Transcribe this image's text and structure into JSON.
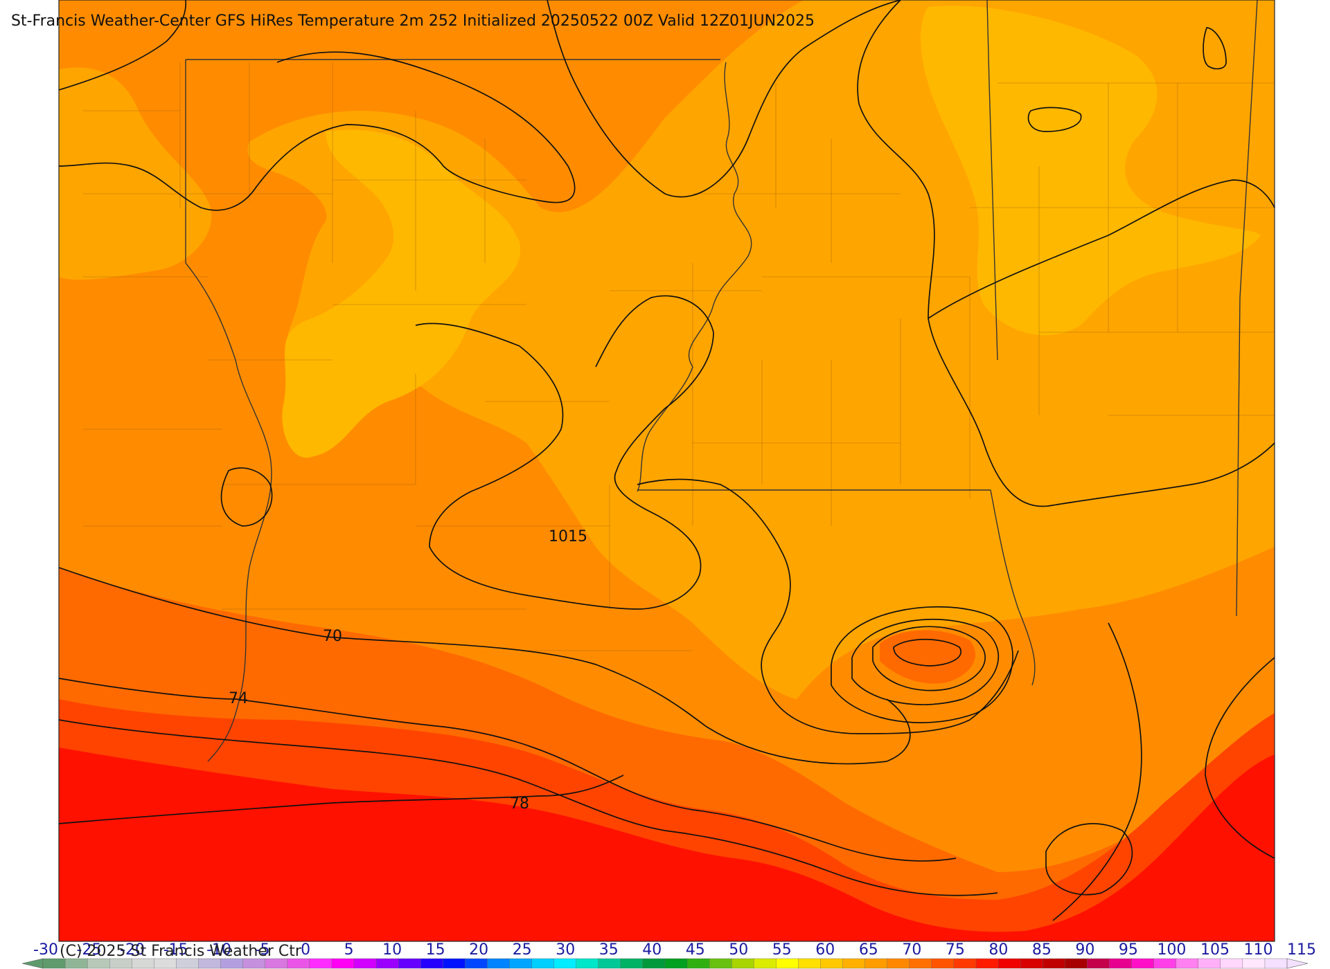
{
  "title": "St-Francis Weather-Center GFS HiRes Temperature 2m  252 Initialized 20250522 00Z Valid 12Z01JUN2025",
  "copyright": "(C) 2025 St Francis Weather Ctr",
  "contour_labels": {
    "pressure": "1015",
    "temp_70": "70",
    "temp_74": "74",
    "temp_78": "78"
  },
  "colorbar": {
    "ticks": [
      "-30",
      "-25",
      "-20",
      "-15",
      "-10",
      "-5",
      "0",
      "5",
      "10",
      "15",
      "20",
      "25",
      "30",
      "35",
      "40",
      "45",
      "50",
      "55",
      "60",
      "65",
      "70",
      "75",
      "80",
      "85",
      "90",
      "95",
      "100",
      "105",
      "110",
      "115"
    ],
    "colors": [
      "#5f9b6c",
      "#8fb596",
      "#b7c8b9",
      "#c8cfc9",
      "#d6d8d6",
      "#dcdcdc",
      "#cfcfdc",
      "#c2b7dc",
      "#b39fdf",
      "#c590dd",
      "#d878e0",
      "#ea55e8",
      "#ff2cff",
      "#ff00f5",
      "#d100ff",
      "#9b00ff",
      "#6500ff",
      "#2600ff",
      "#0013ff",
      "#0047ff",
      "#0083ff",
      "#00a5ff",
      "#00cfff",
      "#00ecff",
      "#00e6c8",
      "#00c896",
      "#00b264",
      "#009a3c",
      "#00a020",
      "#30b010",
      "#68c010",
      "#a8d400",
      "#dcec00",
      "#ffff00",
      "#ffe000",
      "#ffc800",
      "#ffb000",
      "#ff9c00",
      "#ff8800",
      "#ff7000",
      "#ff5400",
      "#ff3a00",
      "#ff1a00",
      "#f00000",
      "#d80000",
      "#c00000",
      "#a80000",
      "#c4004a",
      "#e8008e",
      "#ff10c8",
      "#ff40e8",
      "#ff80f0",
      "#ffb0f8",
      "#ffd6fc",
      "#ffe8fe",
      "#f4e0ff"
    ]
  },
  "fill_colors": {
    "ocean": "#ff1100",
    "coastal_1": "#ff3300",
    "coastal_2": "#ff5a00",
    "land_70": "#ff8c00",
    "land_75": "#ffa500",
    "land_80": "#ffb800"
  }
}
